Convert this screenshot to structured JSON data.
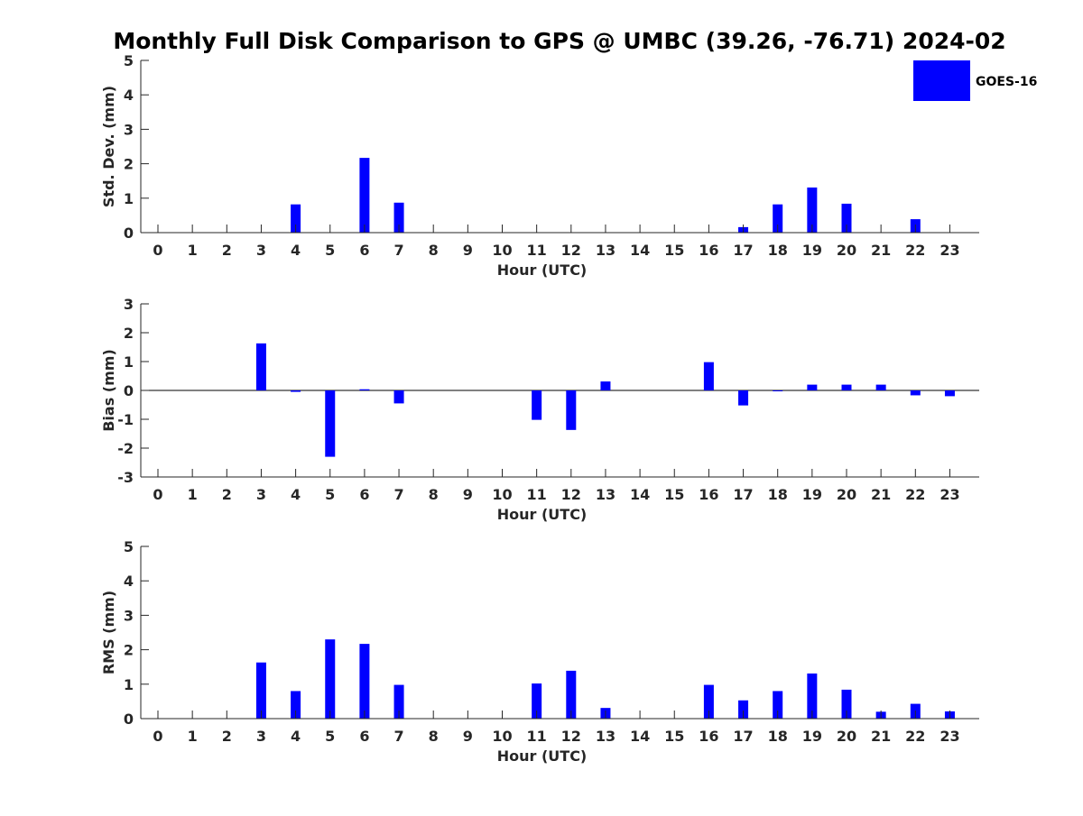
{
  "figure": {
    "title": "Monthly Full Disk Comparison to GPS @ UMBC (39.26, -76.71) 2024-02"
  },
  "colors": {
    "bar": "#0000ff",
    "axis": "#262626",
    "zero_line": "#000000"
  },
  "legend": {
    "label": "GOES-16",
    "placement": "top-right"
  },
  "chart_data": [
    {
      "type": "bar",
      "series": [
        {
          "name": "GOES-16",
          "values": [
            0,
            0,
            0,
            0,
            0.82,
            0,
            2.17,
            0.87,
            0,
            0,
            0,
            0,
            0,
            0,
            0,
            0,
            0,
            0.16,
            0.82,
            1.31,
            0.84,
            0,
            0.39,
            0
          ]
        }
      ],
      "categories": [
        "0",
        "1",
        "2",
        "3",
        "4",
        "5",
        "6",
        "7",
        "8",
        "9",
        "10",
        "11",
        "12",
        "13",
        "14",
        "15",
        "16",
        "17",
        "18",
        "19",
        "20",
        "21",
        "22",
        "23"
      ],
      "xlabel": "Hour (UTC)",
      "ylabel": "Std. Dev. (mm)",
      "ylim": [
        0,
        5
      ],
      "yticks": [
        0,
        1,
        2,
        3,
        4,
        5
      ],
      "grid": false
    },
    {
      "type": "bar",
      "series": [
        {
          "name": "GOES-16",
          "values": [
            0,
            0,
            0,
            1.63,
            -0.05,
            -2.3,
            0.04,
            -0.45,
            0,
            0,
            0,
            -1.02,
            -1.37,
            0.31,
            0,
            0,
            0.98,
            -0.52,
            -0.02,
            0.2,
            0.2,
            0.2,
            -0.17,
            -0.2
          ]
        }
      ],
      "categories": [
        "0",
        "1",
        "2",
        "3",
        "4",
        "5",
        "6",
        "7",
        "8",
        "9",
        "10",
        "11",
        "12",
        "13",
        "14",
        "15",
        "16",
        "17",
        "18",
        "19",
        "20",
        "21",
        "22",
        "23"
      ],
      "xlabel": "Hour (UTC)",
      "ylabel": "Bias (mm)",
      "ylim": [
        -3,
        3
      ],
      "yticks": [
        -3,
        -2,
        -1,
        0,
        1,
        2,
        3
      ],
      "grid": false
    },
    {
      "type": "bar",
      "series": [
        {
          "name": "GOES-16",
          "values": [
            0,
            0,
            0,
            1.63,
            0.8,
            2.3,
            2.17,
            0.98,
            0,
            0,
            0,
            1.02,
            1.39,
            0.31,
            0,
            0,
            0.98,
            0.53,
            0.8,
            1.31,
            0.84,
            0.2,
            0.43,
            0.21
          ]
        }
      ],
      "categories": [
        "0",
        "1",
        "2",
        "3",
        "4",
        "5",
        "6",
        "7",
        "8",
        "9",
        "10",
        "11",
        "12",
        "13",
        "14",
        "15",
        "16",
        "17",
        "18",
        "19",
        "20",
        "21",
        "22",
        "23"
      ],
      "xlabel": "Hour (UTC)",
      "ylabel": "RMS (mm)",
      "ylim": [
        0,
        5
      ],
      "yticks": [
        0,
        1,
        2,
        3,
        4,
        5
      ],
      "grid": false
    }
  ]
}
